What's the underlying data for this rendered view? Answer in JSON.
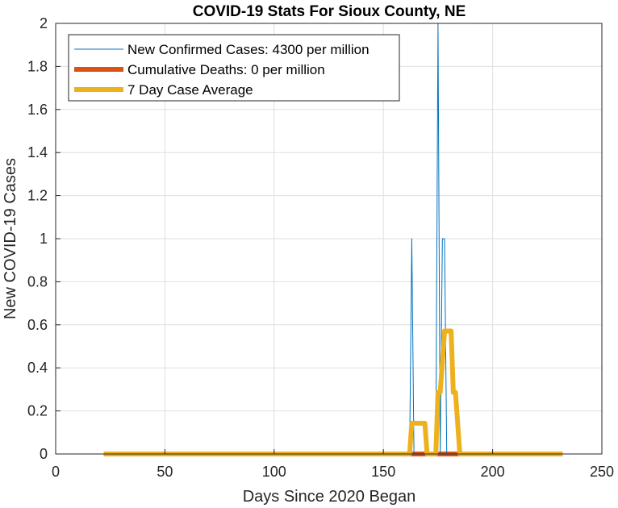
{
  "chart_data": {
    "type": "line",
    "title": "COVID-19 Stats For Sioux County, NE",
    "xlabel": "Days Since 2020 Began",
    "ylabel": "New COVID-19 Cases",
    "xlim": [
      0,
      250
    ],
    "ylim": [
      0,
      2
    ],
    "xticks": [
      0,
      50,
      100,
      150,
      200,
      250
    ],
    "yticks": [
      0,
      0.2,
      0.4,
      0.6,
      0.8,
      1,
      1.2,
      1.4,
      1.6,
      1.8,
      2
    ],
    "grid": true,
    "legend_position": "top-left",
    "series": [
      {
        "name": "New Confirmed Cases: 4300 per million",
        "color": "#0072BD",
        "style": "thin",
        "x": [
          22,
          162,
          163,
          164,
          174,
          175,
          176,
          177,
          178,
          179,
          232
        ],
        "y": [
          0,
          0,
          1,
          0,
          0,
          2,
          0,
          1,
          1,
          0,
          0
        ]
      },
      {
        "name": "Cumulative Deaths: 0 per million",
        "color": "#D95319",
        "style": "thick",
        "x": [
          22,
          232
        ],
        "y": [
          0,
          0
        ]
      },
      {
        "name": "7 Day Case Average",
        "color": "#EDB120",
        "style": "thick",
        "x": [
          22,
          162,
          163,
          169,
          170,
          174,
          175,
          176,
          177,
          178,
          179,
          181,
          182,
          183,
          184,
          185,
          232
        ],
        "y": [
          0,
          0,
          0.1429,
          0.1429,
          0,
          0,
          0.2857,
          0.2857,
          0.4286,
          0.5714,
          0.5714,
          0.5714,
          0.2857,
          0.2857,
          0.1429,
          0,
          0
        ]
      }
    ]
  }
}
